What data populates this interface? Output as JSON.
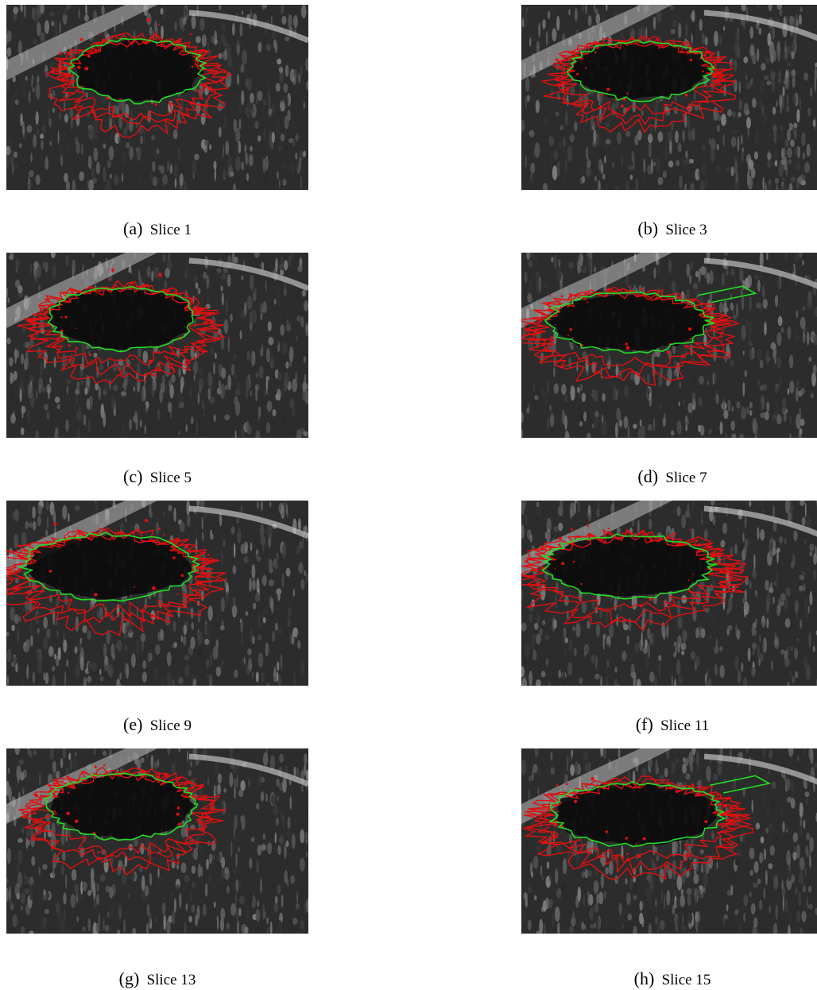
{
  "panels": [
    {
      "label": "(a)",
      "caption": "Slice 1"
    },
    {
      "label": "(b)",
      "caption": "Slice 3"
    },
    {
      "label": "(c)",
      "caption": "Slice 5"
    },
    {
      "label": "(d)",
      "caption": "Slice 7"
    },
    {
      "label": "(e)",
      "caption": "Slice 9"
    },
    {
      "label": "(f)",
      "caption": "Slice 11"
    },
    {
      "label": "(g)",
      "caption": "Slice 13"
    },
    {
      "label": "(h)",
      "caption": "Slice 15"
    }
  ],
  "colors": {
    "ground_truth_contour": "#22dd22",
    "segmentation_contour": "#e01010",
    "background_speckle": "#2c2c2c"
  }
}
